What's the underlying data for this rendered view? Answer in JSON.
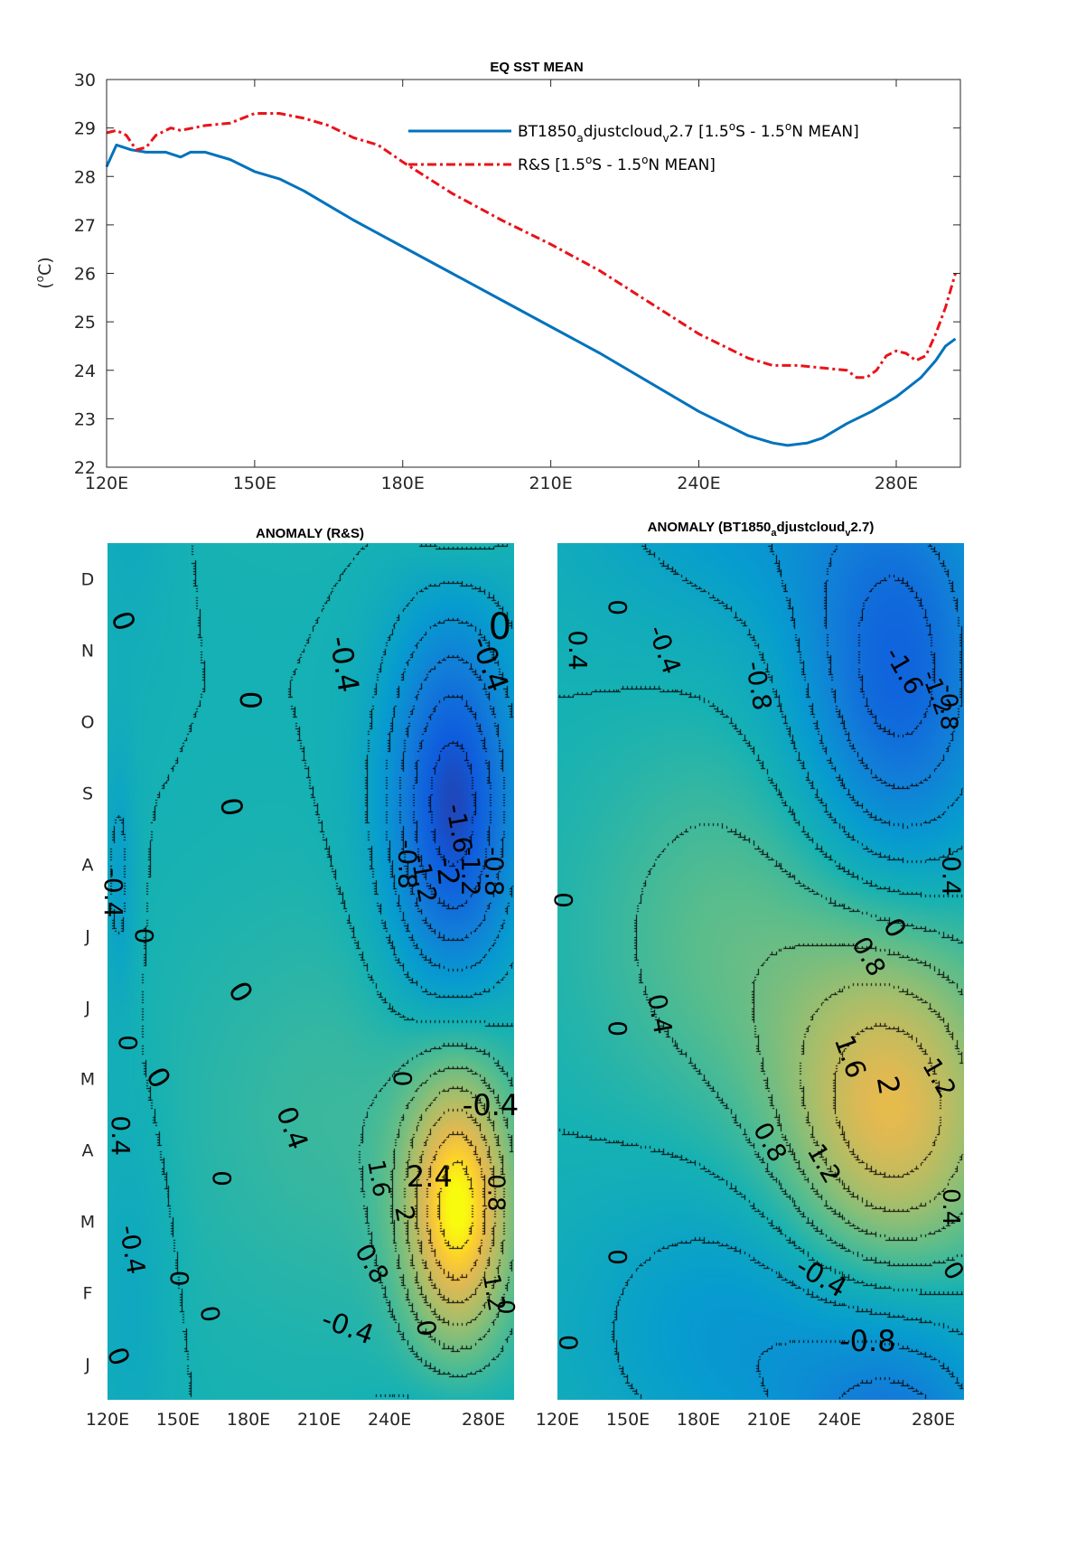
{
  "chart_data": [
    {
      "type": "line",
      "title": "EQ SST MEAN",
      "ylabel": "(°C)",
      "xlim": [
        120,
        293
      ],
      "ylim": [
        22,
        30
      ],
      "x_ticks": [
        120,
        150,
        180,
        210,
        240,
        280
      ],
      "x_tick_labels": [
        "120E",
        "150E",
        "180E",
        "210E",
        "240E",
        "280E"
      ],
      "y_ticks": [
        22,
        23,
        24,
        25,
        26,
        27,
        28,
        29,
        30
      ],
      "y_tick_labels": [
        "22",
        "23",
        "24",
        "25",
        "26",
        "27",
        "28",
        "29",
        "30"
      ],
      "grid": false,
      "legend_position": "top-right",
      "series": [
        {
          "name": "BT1850_adjustcloud_v2.7 [1.5°S - 1.5°N MEAN]",
          "legend_parts": {
            "main": "BT1850",
            "sub1": "a",
            "mid": "djustcloud",
            "sub2": "v",
            "tail": "2.7 [1.5",
            "sup1": "o",
            "mid2": "S - 1.5",
            "sup2": "o",
            "end": "N MEAN]"
          },
          "color": "#0072bd",
          "style": "solid",
          "x": [
            120,
            122,
            125,
            128,
            130,
            132,
            135,
            137,
            140,
            145,
            150,
            155,
            160,
            165,
            170,
            180,
            190,
            200,
            210,
            220,
            230,
            240,
            250,
            255,
            258,
            262,
            265,
            270,
            275,
            280,
            285,
            288,
            290,
            292
          ],
          "y": [
            28.2,
            28.65,
            28.55,
            28.5,
            28.5,
            28.5,
            28.4,
            28.5,
            28.5,
            28.35,
            28.1,
            27.95,
            27.7,
            27.4,
            27.1,
            26.55,
            26.0,
            25.45,
            24.9,
            24.35,
            23.75,
            23.15,
            22.65,
            22.5,
            22.45,
            22.5,
            22.6,
            22.9,
            23.15,
            23.45,
            23.85,
            24.2,
            24.5,
            24.65
          ]
        },
        {
          "name": "R&S [1.5°S - 1.5°N MEAN]",
          "legend_parts": {
            "main": "R&S [1.5",
            "sup1": "o",
            "mid": "S - 1.5",
            "sup2": "o",
            "end": "N MEAN]"
          },
          "color": "#e8141a",
          "style": "dashdot",
          "x": [
            120,
            122,
            124,
            126,
            128,
            130,
            133,
            135,
            140,
            145,
            150,
            155,
            160,
            165,
            170,
            175,
            180,
            190,
            200,
            210,
            220,
            230,
            240,
            250,
            255,
            260,
            265,
            270,
            272,
            274,
            276,
            278,
            280,
            282,
            284,
            286,
            288,
            290,
            292
          ],
          "y": [
            28.9,
            28.95,
            28.85,
            28.55,
            28.6,
            28.85,
            29.0,
            28.95,
            29.05,
            29.1,
            29.3,
            29.3,
            29.2,
            29.05,
            28.8,
            28.65,
            28.3,
            27.65,
            27.1,
            26.6,
            26.05,
            25.4,
            24.75,
            24.25,
            24.1,
            24.1,
            24.05,
            24.0,
            23.85,
            23.85,
            24.0,
            24.3,
            24.4,
            24.35,
            24.2,
            24.3,
            24.75,
            25.3,
            26.0
          ]
        }
      ]
    },
    {
      "type": "heatmap",
      "title": "ANOMALY (R&S)",
      "xlim": [
        120,
        293
      ],
      "x_ticks": [
        120,
        150,
        180,
        210,
        240,
        280
      ],
      "x_tick_labels": [
        "120E",
        "150E",
        "180E",
        "210E",
        "240E",
        "280E"
      ],
      "y_tick_labels": [
        "J",
        "F",
        "M",
        "A",
        "M",
        "J",
        "J",
        "A",
        "S",
        "O",
        "N",
        "D"
      ],
      "colormap": "parula",
      "color_range": [
        -2.6,
        2.6
      ],
      "contour_levels": [
        -2,
        -1.6,
        -1.2,
        -0.8,
        -0.4,
        0,
        0.4,
        0.8,
        1.2,
        1.6,
        2,
        2.4
      ],
      "anomaly_features": [
        {
          "lon": 267,
          "month_index": 8.3,
          "amplitude": -2.25,
          "lon_width": 20,
          "month_width": 1.9
        },
        {
          "lon": 269,
          "month_index": 2.7,
          "amplitude": 2.5,
          "lon_width": 16,
          "month_width": 1.4
        },
        {
          "lon": 125,
          "month_index": 7.3,
          "amplitude": -0.5,
          "lon_width": 5,
          "month_width": 1.3
        },
        {
          "lon": 130,
          "month_index": 1.5,
          "amplitude": -0.3,
          "lon_width": 12,
          "month_width": 2.0
        },
        {
          "lon": 220,
          "month_index": 4.0,
          "amplitude": 0.35,
          "lon_width": 50,
          "month_width": 2.0
        }
      ],
      "contour_labels": [
        {
          "text": "0",
          "lon": 126,
          "month": 10.9,
          "rotation": 70,
          "size": 32
        },
        {
          "text": "0",
          "lon": 180,
          "month": 9.8,
          "rotation": 90,
          "size": 32
        },
        {
          "text": "-0.4",
          "lon": 220,
          "month": 10.3,
          "rotation": 80,
          "size": 32
        },
        {
          "text": "-0.4",
          "lon": 282,
          "month": 10.3,
          "rotation": 70,
          "size": 32
        },
        {
          "text": "0",
          "lon": 287,
          "month": 10.8,
          "rotation": 0,
          "size": 40
        },
        {
          "text": "0",
          "lon": 172,
          "month": 8.3,
          "rotation": 80,
          "size": 32
        },
        {
          "text": "-1.6",
          "lon": 269,
          "month": 8.0,
          "rotation": 80,
          "size": 28
        },
        {
          "text": "-0.8",
          "lon": 247,
          "month": 7.5,
          "rotation": 90,
          "size": 28
        },
        {
          "text": "-1.2",
          "lon": 254,
          "month": 7.3,
          "rotation": 80,
          "size": 28
        },
        {
          "text": "-2",
          "lon": 264,
          "month": 7.4,
          "rotation": 85,
          "size": 32
        },
        {
          "text": "-1.2",
          "lon": 274,
          "month": 7.4,
          "rotation": 90,
          "size": 28
        },
        {
          "text": "-0.8",
          "lon": 284,
          "month": 7.4,
          "rotation": 90,
          "size": 28
        },
        {
          "text": "-0.4",
          "lon": 122,
          "month": 7.1,
          "rotation": 90,
          "size": 28
        },
        {
          "text": "0",
          "lon": 135,
          "month": 6.5,
          "rotation": 90,
          "size": 28
        },
        {
          "text": "0",
          "lon": 176,
          "month": 5.7,
          "rotation": 60,
          "size": 32
        },
        {
          "text": "0",
          "lon": 141,
          "month": 4.5,
          "rotation": 60,
          "size": 32
        },
        {
          "text": "0",
          "lon": 128,
          "month": 5.0,
          "rotation": 90,
          "size": 28
        },
        {
          "text": "0",
          "lon": 245,
          "month": 4.5,
          "rotation": 90,
          "size": 28
        },
        {
          "text": "-0.4",
          "lon": 283,
          "month": 4.1,
          "rotation": 0,
          "size": 32
        },
        {
          "text": "0.4",
          "lon": 198,
          "month": 3.8,
          "rotation": 70,
          "size": 30
        },
        {
          "text": "0.4",
          "lon": 125,
          "month": 3.7,
          "rotation": 90,
          "size": 28
        },
        {
          "text": "0",
          "lon": 168,
          "month": 3.1,
          "rotation": 90,
          "size": 28
        },
        {
          "text": "1.6",
          "lon": 235,
          "month": 3.1,
          "rotation": 80,
          "size": 26
        },
        {
          "text": "2.4",
          "lon": 257,
          "month": 3.1,
          "rotation": 0,
          "size": 32
        },
        {
          "text": "0.8",
          "lon": 285,
          "month": 2.9,
          "rotation": 90,
          "size": 26
        },
        {
          "text": "2",
          "lon": 246,
          "month": 2.6,
          "rotation": 80,
          "size": 28
        },
        {
          "text": "-0.4",
          "lon": 130,
          "month": 2.1,
          "rotation": 80,
          "size": 28
        },
        {
          "text": "0.8",
          "lon": 232,
          "month": 1.9,
          "rotation": 60,
          "size": 28
        },
        {
          "text": "1.2",
          "lon": 284,
          "month": 1.5,
          "rotation": 80,
          "size": 26
        },
        {
          "text": "0",
          "lon": 150,
          "month": 1.7,
          "rotation": 90,
          "size": 28
        },
        {
          "text": "0",
          "lon": 163,
          "month": 1.2,
          "rotation": 80,
          "size": 28
        },
        {
          "text": "-0.4",
          "lon": 222,
          "month": 1.0,
          "rotation": 20,
          "size": 30
        },
        {
          "text": "0",
          "lon": 255,
          "month": 1.0,
          "rotation": 80,
          "size": 28
        },
        {
          "text": "0",
          "lon": 289,
          "month": 1.3,
          "rotation": 90,
          "size": 26
        },
        {
          "text": "0",
          "lon": 124,
          "month": 0.6,
          "rotation": 70,
          "size": 30
        }
      ]
    },
    {
      "type": "heatmap",
      "title_parts": {
        "main": "ANOMALY (BT1850",
        "sub1": "a",
        "mid": "djustcloud",
        "sub2": "v",
        "end": "2.7)"
      },
      "title": "ANOMALY (BT1850_adjustcloud_v2.7)",
      "xlim": [
        120,
        293
      ],
      "x_ticks": [
        120,
        150,
        180,
        210,
        240,
        280
      ],
      "x_tick_labels": [
        "120E",
        "150E",
        "180E",
        "210E",
        "240E",
        "280E"
      ],
      "colormap": "parula",
      "color_range": [
        -2.6,
        2.6
      ],
      "contour_levels": [
        -1.6,
        -1.2,
        -0.8,
        -0.4,
        0,
        0.4,
        0.8,
        1.2,
        1.6,
        2
      ],
      "anomaly_features": [
        {
          "lon": 265,
          "month_index": 10.1,
          "amplitude": -1.8,
          "lon_width": 30,
          "month_width": 2.3
        },
        {
          "lon": 262,
          "month_index": 3.8,
          "amplitude": 2.1,
          "lon_width": 34,
          "month_width": 2.2
        },
        {
          "lon": 220,
          "month_index": 1.0,
          "amplitude": -0.9,
          "lon_width": 60,
          "month_width": 1.5
        },
        {
          "lon": 190,
          "month_index": 6.5,
          "amplitude": 0.6,
          "lon_width": 40,
          "month_width": 1.8
        }
      ],
      "contour_labels": [
        {
          "text": "0",
          "lon": 145,
          "month": 11.1,
          "rotation": 90,
          "size": 28
        },
        {
          "text": "0.4",
          "lon": 128,
          "month": 10.5,
          "rotation": 90,
          "size": 28
        },
        {
          "text": "-0.4",
          "lon": 165,
          "month": 10.5,
          "rotation": 70,
          "size": 28
        },
        {
          "text": "-0.8",
          "lon": 205,
          "month": 10.0,
          "rotation": 80,
          "size": 28
        },
        {
          "text": "-1.6",
          "lon": 267,
          "month": 10.2,
          "rotation": 60,
          "size": 28
        },
        {
          "text": "-1.2",
          "lon": 281,
          "month": 9.9,
          "rotation": 70,
          "size": 26
        },
        {
          "text": "-0.8",
          "lon": 286,
          "month": 9.7,
          "rotation": 90,
          "size": 26
        },
        {
          "text": "-0.4",
          "lon": 287,
          "month": 7.4,
          "rotation": 90,
          "size": 28
        },
        {
          "text": "0",
          "lon": 122,
          "month": 7.0,
          "rotation": 90,
          "size": 28
        },
        {
          "text": "0",
          "lon": 263,
          "month": 6.6,
          "rotation": 60,
          "size": 30
        },
        {
          "text": "0.8",
          "lon": 252,
          "month": 6.2,
          "rotation": 60,
          "size": 28
        },
        {
          "text": "0.4",
          "lon": 163,
          "month": 5.4,
          "rotation": 80,
          "size": 28
        },
        {
          "text": "0",
          "lon": 145,
          "month": 5.2,
          "rotation": 90,
          "size": 28
        },
        {
          "text": "1.6",
          "lon": 244,
          "month": 4.8,
          "rotation": 70,
          "size": 30
        },
        {
          "text": "1.2",
          "lon": 282,
          "month": 4.5,
          "rotation": 60,
          "size": 28
        },
        {
          "text": "2",
          "lon": 260,
          "month": 4.4,
          "rotation": 80,
          "size": 32
        },
        {
          "text": "0.8",
          "lon": 210,
          "month": 3.6,
          "rotation": 60,
          "size": 28
        },
        {
          "text": "1.2",
          "lon": 233,
          "month": 3.3,
          "rotation": 60,
          "size": 28
        },
        {
          "text": "0.4",
          "lon": 287,
          "month": 2.7,
          "rotation": 90,
          "size": 26
        },
        {
          "text": "0",
          "lon": 145,
          "month": 2.0,
          "rotation": 90,
          "size": 28
        },
        {
          "text": "-0.4",
          "lon": 232,
          "month": 1.7,
          "rotation": 30,
          "size": 30
        },
        {
          "text": "0",
          "lon": 288,
          "month": 1.8,
          "rotation": 60,
          "size": 28
        },
        {
          "text": "-0.8",
          "lon": 252,
          "month": 0.8,
          "rotation": 0,
          "size": 32
        },
        {
          "text": "0",
          "lon": 124,
          "month": 0.8,
          "rotation": 90,
          "size": 28
        }
      ]
    }
  ]
}
